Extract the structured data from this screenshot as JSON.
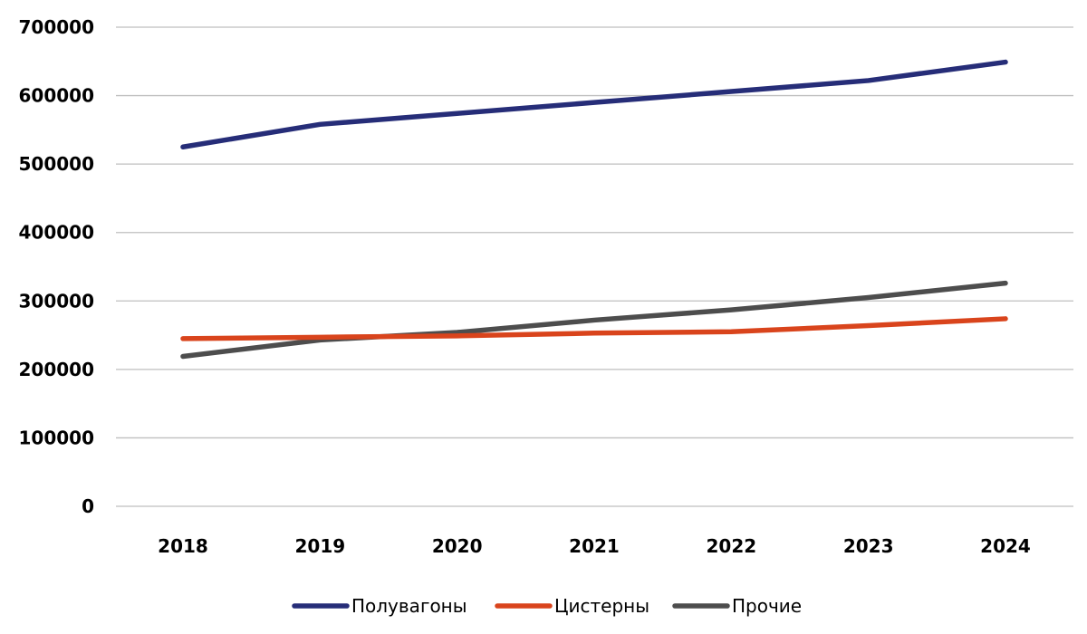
{
  "chart_data": {
    "type": "line",
    "title": "",
    "xlabel": "",
    "ylabel": "",
    "categories": [
      "2018",
      "2019",
      "2020",
      "2021",
      "2022",
      "2023",
      "2024"
    ],
    "ylim": [
      0,
      700000
    ],
    "yticks": [
      "0",
      "100000",
      "200000",
      "300000",
      "400000",
      "500000",
      "600000",
      "700000"
    ],
    "grid": "horizontal",
    "legend_position": "bottom",
    "series": [
      {
        "name": "Полувагоны",
        "color": "#262D78",
        "values": [
          525000,
          558000,
          574000,
          590000,
          606000,
          622000,
          649000
        ]
      },
      {
        "name": "Цистерны",
        "color": "#D9441C",
        "values": [
          245000,
          247000,
          249000,
          253000,
          255000,
          264000,
          274000
        ]
      },
      {
        "name": "Прочие",
        "color": "#4D4D4D",
        "values": [
          219000,
          243000,
          254000,
          272000,
          287000,
          305000,
          326000
        ]
      }
    ]
  }
}
